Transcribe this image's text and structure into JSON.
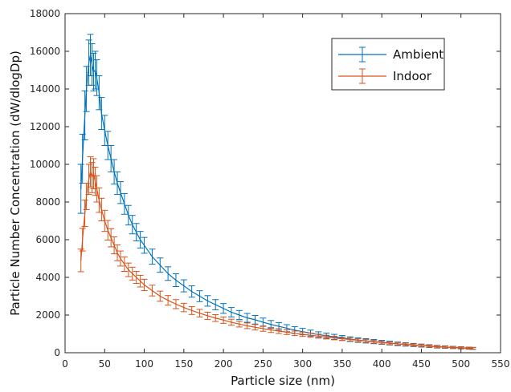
{
  "chart_data": {
    "type": "line",
    "title": "",
    "xlabel": "Particle size (nm)",
    "ylabel": "Particle Number Concentration (dW/dlogDp)",
    "xlim": [
      0,
      550
    ],
    "ylim": [
      0,
      18000
    ],
    "xticks": [
      0,
      50,
      100,
      150,
      200,
      250,
      300,
      350,
      400,
      450,
      500,
      550
    ],
    "yticks": [
      0,
      2000,
      4000,
      6000,
      8000,
      10000,
      12000,
      14000,
      16000,
      18000
    ],
    "error_bars": true,
    "grid": false,
    "legend_position": "top-right",
    "series": [
      {
        "name": "Ambient",
        "color": "#0072BD",
        "x": [
          20,
          22,
          25,
          27,
          30,
          32,
          34,
          36,
          38,
          40,
          43,
          46,
          50,
          54,
          58,
          62,
          66,
          70,
          75,
          80,
          85,
          90,
          95,
          100,
          110,
          120,
          130,
          140,
          150,
          160,
          170,
          180,
          190,
          200,
          210,
          220,
          230,
          240,
          250,
          260,
          270,
          280,
          290,
          300,
          310,
          320,
          330,
          340,
          350,
          360,
          370,
          380,
          390,
          400,
          410,
          420,
          430,
          440,
          450,
          460,
          470,
          480,
          490,
          500,
          510,
          515
        ],
        "y": [
          8700,
          10300,
          12600,
          14000,
          15400,
          15800,
          15300,
          14900,
          15000,
          14600,
          13800,
          12700,
          11800,
          11000,
          10300,
          9600,
          9000,
          8500,
          7900,
          7300,
          6800,
          6400,
          6000,
          5700,
          5100,
          4650,
          4200,
          3850,
          3550,
          3250,
          3000,
          2750,
          2550,
          2350,
          2150,
          2000,
          1850,
          1750,
          1620,
          1500,
          1400,
          1300,
          1200,
          1120,
          1040,
          960,
          900,
          840,
          780,
          720,
          670,
          630,
          590,
          550,
          510,
          470,
          440,
          410,
          380,
          350,
          320,
          300,
          280,
          260,
          240,
          230
        ],
        "error": [
          1300,
          1300,
          1300,
          1200,
          1200,
          1100,
          1100,
          1000,
          1000,
          950,
          900,
          850,
          800,
          750,
          700,
          650,
          600,
          580,
          550,
          520,
          490,
          460,
          440,
          420,
          400,
          380,
          360,
          340,
          320,
          300,
          290,
          280,
          270,
          260,
          250,
          240,
          235,
          230,
          220,
          210,
          200,
          190,
          180,
          170,
          160,
          150,
          140,
          135,
          130,
          125,
          120,
          115,
          110,
          105,
          100,
          95,
          90,
          85,
          80,
          75,
          70,
          65,
          60,
          58,
          55,
          55
        ]
      },
      {
        "name": "Indoor",
        "color": "#D95319",
        "x": [
          20,
          22,
          25,
          27,
          30,
          32,
          34,
          36,
          38,
          40,
          43,
          46,
          50,
          54,
          58,
          62,
          66,
          70,
          75,
          80,
          85,
          90,
          95,
          100,
          110,
          120,
          130,
          140,
          150,
          160,
          170,
          180,
          190,
          200,
          210,
          220,
          230,
          240,
          250,
          260,
          270,
          280,
          290,
          300,
          310,
          320,
          330,
          340,
          350,
          360,
          370,
          380,
          390,
          400,
          410,
          420,
          430,
          440,
          450,
          460,
          470,
          480,
          490,
          500,
          510,
          515
        ],
        "y": [
          4900,
          6000,
          7400,
          8300,
          9200,
          9600,
          9300,
          9500,
          9100,
          8700,
          8100,
          7600,
          7000,
          6500,
          6100,
          5700,
          5300,
          5000,
          4700,
          4400,
          4200,
          4000,
          3800,
          3600,
          3300,
          3000,
          2780,
          2580,
          2400,
          2240,
          2100,
          1960,
          1840,
          1730,
          1620,
          1520,
          1430,
          1350,
          1280,
          1210,
          1150,
          1090,
          1030,
          980,
          930,
          880,
          830,
          780,
          740,
          700,
          660,
          620,
          580,
          540,
          500,
          470,
          440,
          410,
          380,
          350,
          320,
          300,
          280,
          260,
          240,
          230
        ],
        "error": [
          600,
          600,
          700,
          700,
          800,
          800,
          800,
          800,
          750,
          700,
          650,
          600,
          560,
          520,
          480,
          450,
          420,
          400,
          380,
          360,
          340,
          320,
          310,
          300,
          285,
          270,
          255,
          240,
          225,
          210,
          200,
          190,
          180,
          170,
          160,
          155,
          150,
          145,
          140,
          135,
          130,
          125,
          120,
          115,
          110,
          105,
          100,
          95,
          90,
          85,
          80,
          78,
          75,
          72,
          70,
          68,
          65,
          62,
          60,
          58,
          55,
          52,
          50,
          48,
          45,
          45
        ]
      }
    ]
  }
}
